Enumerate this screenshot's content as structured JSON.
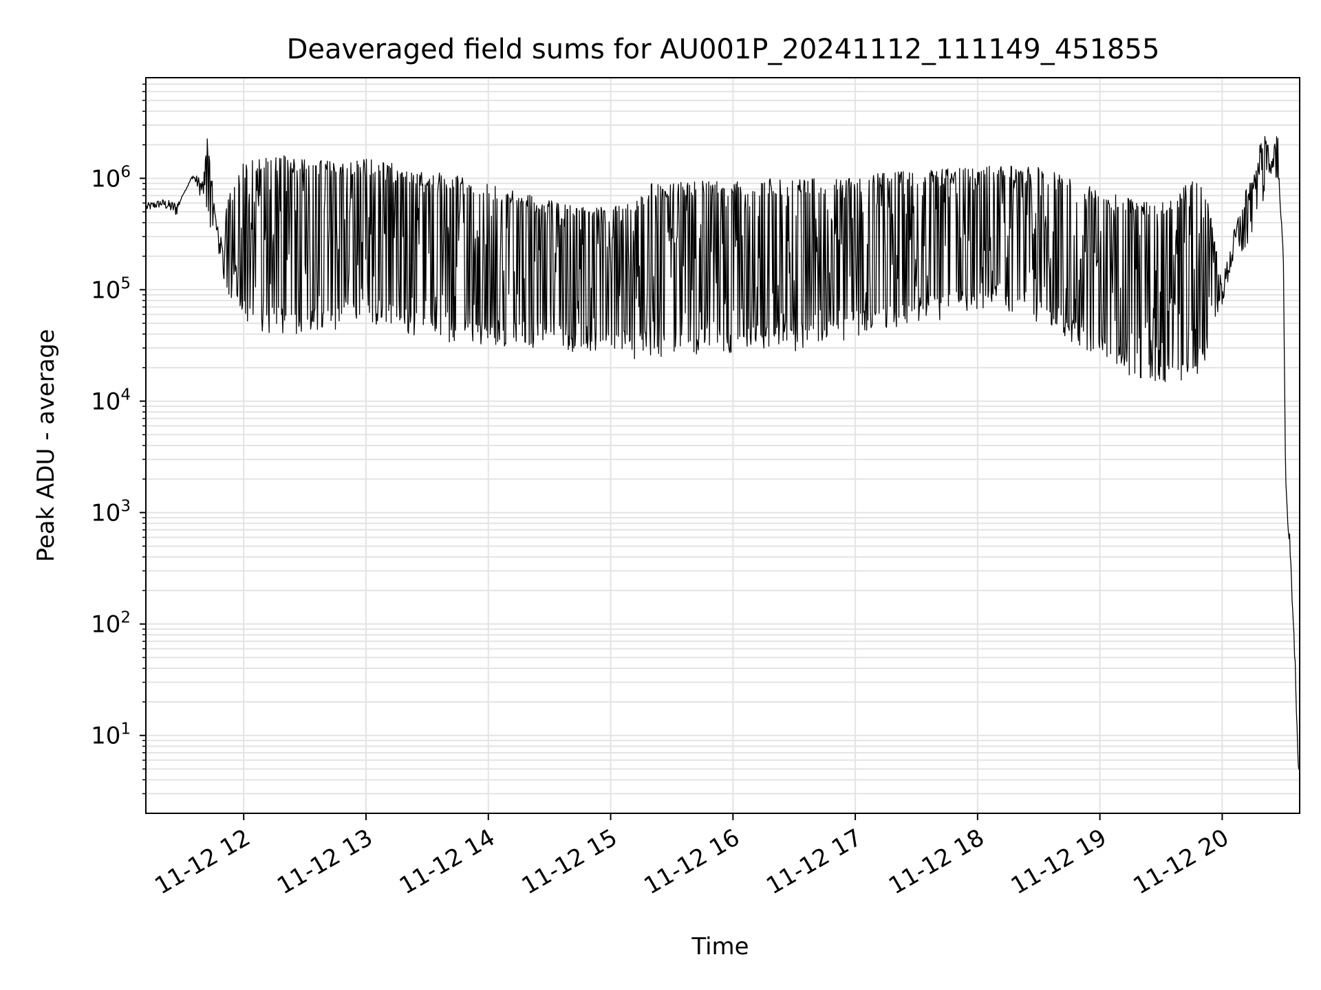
{
  "chart_data": {
    "type": "line",
    "title": "Deaveraged field sums for AU001P_20241112_111149_451855",
    "xlabel": "Time",
    "ylabel": "Peak ADU - average",
    "yscale": "log",
    "ylim": [
      2,
      8000000
    ],
    "xlim": [
      "2024-11-12T11:12",
      "2024-11-12T20:38"
    ],
    "grid": true,
    "line_color": "#000000",
    "x_ticks": [
      {
        "value": "2024-11-12T12:00",
        "label": "11-12 12"
      },
      {
        "value": "2024-11-12T13:00",
        "label": "11-12 13"
      },
      {
        "value": "2024-11-12T14:00",
        "label": "11-12 14"
      },
      {
        "value": "2024-11-12T15:00",
        "label": "11-12 15"
      },
      {
        "value": "2024-11-12T16:00",
        "label": "11-12 16"
      },
      {
        "value": "2024-11-12T17:00",
        "label": "11-12 17"
      },
      {
        "value": "2024-11-12T18:00",
        "label": "11-12 18"
      },
      {
        "value": "2024-11-12T19:00",
        "label": "11-12 19"
      },
      {
        "value": "2024-11-12T20:00",
        "label": "11-12 20"
      }
    ],
    "y_ticks": [
      {
        "value": 10,
        "base": "10",
        "exp": "1"
      },
      {
        "value": 100,
        "base": "10",
        "exp": "2"
      },
      {
        "value": 1000,
        "base": "10",
        "exp": "3"
      },
      {
        "value": 10000,
        "base": "10",
        "exp": "4"
      },
      {
        "value": 100000,
        "base": "10",
        "exp": "5"
      },
      {
        "value": 1000000,
        "base": "10",
        "exp": "6"
      }
    ],
    "series": [
      {
        "style": "upper-envelope",
        "points": [
          [
            "2024-11-12T11:12",
            600000
          ],
          [
            "2024-11-12T11:20",
            650000
          ],
          [
            "2024-11-12T11:27",
            620000
          ],
          [
            "2024-11-12T11:30",
            700000
          ],
          [
            "2024-11-12T11:35",
            1100000
          ],
          [
            "2024-11-12T11:40",
            1000000
          ],
          [
            "2024-11-12T11:42",
            2400000
          ],
          [
            "2024-11-12T11:45",
            800000
          ],
          [
            "2024-11-12T11:48",
            300000
          ],
          [
            "2024-11-12T11:52",
            700000
          ],
          [
            "2024-11-12T12:00",
            1400000
          ],
          [
            "2024-11-12T12:10",
            1600000
          ],
          [
            "2024-11-12T12:20",
            1600000
          ],
          [
            "2024-11-12T12:30",
            1500000
          ],
          [
            "2024-11-12T12:40",
            1450000
          ],
          [
            "2024-11-12T12:50",
            1400000
          ],
          [
            "2024-11-12T13:00",
            1500000
          ],
          [
            "2024-11-12T13:10",
            1400000
          ],
          [
            "2024-11-12T13:20",
            1300000
          ],
          [
            "2024-11-12T13:30",
            1200000
          ],
          [
            "2024-11-12T13:40",
            1100000
          ],
          [
            "2024-11-12T13:50",
            1000000
          ],
          [
            "2024-11-12T14:00",
            900000
          ],
          [
            "2024-11-12T14:15",
            750000
          ],
          [
            "2024-11-12T14:30",
            650000
          ],
          [
            "2024-11-12T14:45",
            550000
          ],
          [
            "2024-11-12T15:00",
            550000
          ],
          [
            "2024-11-12T15:10",
            600000
          ],
          [
            "2024-11-12T15:20",
            900000
          ],
          [
            "2024-11-12T15:40",
            950000
          ],
          [
            "2024-11-12T16:00",
            950000
          ],
          [
            "2024-11-12T16:20",
            1000000
          ],
          [
            "2024-11-12T16:40",
            1000000
          ],
          [
            "2024-11-12T17:00",
            1050000
          ],
          [
            "2024-11-12T17:20",
            1150000
          ],
          [
            "2024-11-12T17:40",
            1200000
          ],
          [
            "2024-11-12T18:00",
            1300000
          ],
          [
            "2024-11-12T18:10",
            1300000
          ],
          [
            "2024-11-12T18:20",
            1300000
          ],
          [
            "2024-11-12T18:30",
            1250000
          ],
          [
            "2024-11-12T18:40",
            1100000
          ],
          [
            "2024-11-12T18:50",
            900000
          ],
          [
            "2024-11-12T19:00",
            800000
          ],
          [
            "2024-11-12T19:10",
            700000
          ],
          [
            "2024-11-12T19:20",
            650000
          ],
          [
            "2024-11-12T19:30",
            600000
          ],
          [
            "2024-11-12T19:40",
            800000
          ],
          [
            "2024-11-12T19:50",
            1200000
          ],
          [
            "2024-11-12T19:55",
            400000
          ],
          [
            "2024-11-12T20:00",
            120000
          ],
          [
            "2024-11-12T20:05",
            300000
          ],
          [
            "2024-11-12T20:10",
            700000
          ],
          [
            "2024-11-12T20:15",
            1000000
          ],
          [
            "2024-11-12T20:20",
            2800000
          ],
          [
            "2024-11-12T20:25",
            1500000
          ],
          [
            "2024-11-12T20:27",
            3800000
          ],
          [
            "2024-11-12T20:28",
            1000000
          ],
          [
            "2024-11-12T20:30",
            200000
          ],
          [
            "2024-11-12T20:31",
            3000
          ],
          [
            "2024-11-12T20:32",
            1000
          ],
          [
            "2024-11-12T20:33",
            700
          ],
          [
            "2024-11-12T20:34",
            300
          ],
          [
            "2024-11-12T20:35",
            100
          ],
          [
            "2024-11-12T20:36",
            40
          ],
          [
            "2024-11-12T20:37",
            8
          ],
          [
            "2024-11-12T20:38",
            4
          ]
        ]
      },
      {
        "style": "lower-envelope",
        "points": [
          [
            "2024-11-12T11:12",
            500000
          ],
          [
            "2024-11-12T11:20",
            550000
          ],
          [
            "2024-11-12T11:27",
            450000
          ],
          [
            "2024-11-12T11:30",
            700000
          ],
          [
            "2024-11-12T11:35",
            1000000
          ],
          [
            "2024-11-12T11:40",
            600000
          ],
          [
            "2024-11-12T11:45",
            280000
          ],
          [
            "2024-11-12T11:50",
            150000
          ],
          [
            "2024-11-12T11:55",
            80000
          ],
          [
            "2024-11-12T12:00",
            60000
          ],
          [
            "2024-11-12T12:10",
            50000
          ],
          [
            "2024-11-12T12:20",
            50000
          ],
          [
            "2024-11-12T12:30",
            50000
          ],
          [
            "2024-11-12T12:40",
            50000
          ],
          [
            "2024-11-12T12:50",
            55000
          ],
          [
            "2024-11-12T13:00",
            60000
          ],
          [
            "2024-11-12T13:10",
            55000
          ],
          [
            "2024-11-12T13:20",
            50000
          ],
          [
            "2024-11-12T13:30",
            45000
          ],
          [
            "2024-11-12T13:40",
            42000
          ],
          [
            "2024-11-12T13:50",
            40000
          ],
          [
            "2024-11-12T14:00",
            40000
          ],
          [
            "2024-11-12T14:15",
            38000
          ],
          [
            "2024-11-12T14:30",
            36000
          ],
          [
            "2024-11-12T14:45",
            34000
          ],
          [
            "2024-11-12T15:00",
            32000
          ],
          [
            "2024-11-12T15:10",
            30000
          ],
          [
            "2024-11-12T15:20",
            30000
          ],
          [
            "2024-11-12T15:40",
            32000
          ],
          [
            "2024-11-12T16:00",
            34000
          ],
          [
            "2024-11-12T16:20",
            35000
          ],
          [
            "2024-11-12T16:40",
            35000
          ],
          [
            "2024-11-12T17:00",
            45000
          ],
          [
            "2024-11-12T17:20",
            55000
          ],
          [
            "2024-11-12T17:40",
            65000
          ],
          [
            "2024-11-12T18:00",
            80000
          ],
          [
            "2024-11-12T18:10",
            85000
          ],
          [
            "2024-11-12T18:20",
            75000
          ],
          [
            "2024-11-12T18:30",
            60000
          ],
          [
            "2024-11-12T18:40",
            50000
          ],
          [
            "2024-11-12T18:50",
            35000
          ],
          [
            "2024-11-12T19:00",
            28000
          ],
          [
            "2024-11-12T19:10",
            22000
          ],
          [
            "2024-11-12T19:20",
            19000
          ],
          [
            "2024-11-12T19:30",
            18000
          ],
          [
            "2024-11-12T19:40",
            18000
          ],
          [
            "2024-11-12T19:50",
            22000
          ],
          [
            "2024-11-12T19:55",
            40000
          ],
          [
            "2024-11-12T20:00",
            70000
          ],
          [
            "2024-11-12T20:05",
            150000
          ],
          [
            "2024-11-12T20:10",
            250000
          ],
          [
            "2024-11-12T20:15",
            400000
          ],
          [
            "2024-11-12T20:20",
            700000
          ],
          [
            "2024-11-12T20:25",
            1200000
          ],
          [
            "2024-11-12T20:28",
            700000
          ],
          [
            "2024-11-12T20:30",
            200000
          ],
          [
            "2024-11-12T20:31",
            2000
          ],
          [
            "2024-11-12T20:32",
            800
          ],
          [
            "2024-11-12T20:33",
            500
          ],
          [
            "2024-11-12T20:34",
            200
          ],
          [
            "2024-11-12T20:35",
            80
          ],
          [
            "2024-11-12T20:36",
            30
          ],
          [
            "2024-11-12T20:37",
            5
          ],
          [
            "2024-11-12T20:38",
            4
          ]
        ]
      }
    ]
  }
}
